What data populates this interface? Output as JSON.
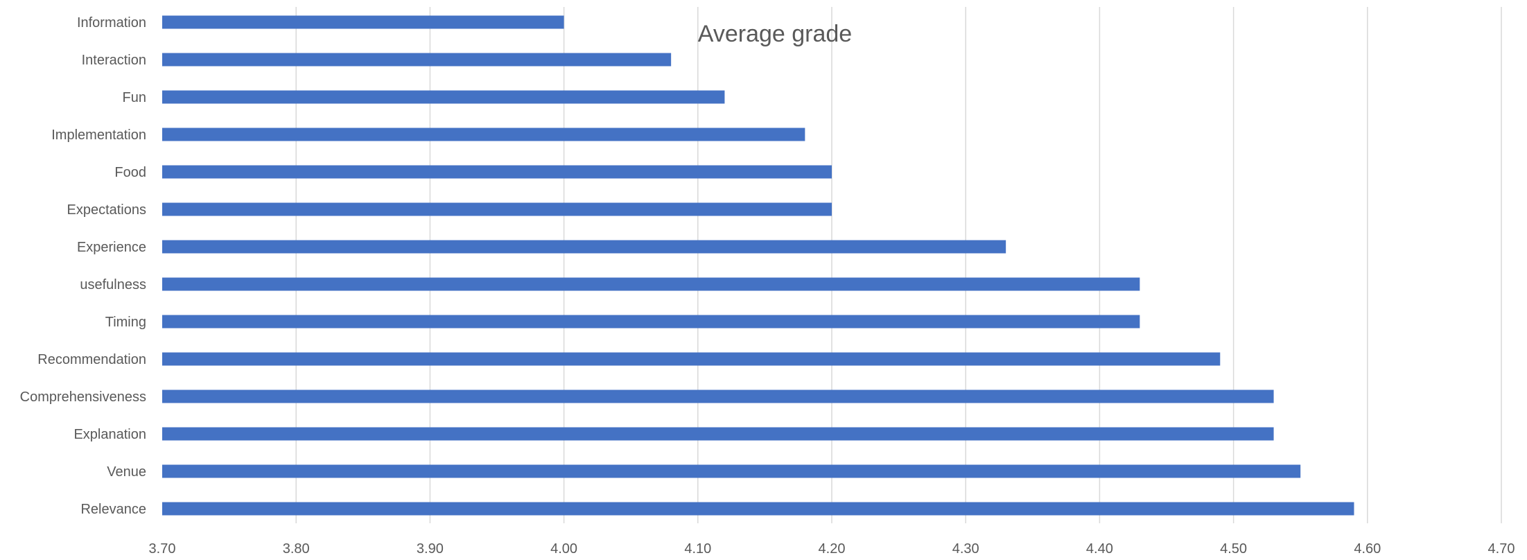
{
  "chart_data": {
    "type": "bar",
    "orientation": "horizontal",
    "title": "Average grade",
    "xlabel": "",
    "ylabel": "",
    "categories": [
      "Information",
      "Interaction",
      "Fun",
      "Implementation",
      "Food",
      "Expectations",
      "Experience",
      "usefulness",
      "Timing",
      "Recommendation",
      "Comprehensiveness",
      "Explanation",
      "Venue",
      "Relevance"
    ],
    "values": [
      4.0,
      4.08,
      4.12,
      4.18,
      4.2,
      4.2,
      4.33,
      4.43,
      4.43,
      4.49,
      4.53,
      4.53,
      4.55,
      4.59
    ],
    "xlim": [
      3.7,
      4.7
    ],
    "xticks": [
      "3.70",
      "3.80",
      "3.90",
      "4.00",
      "4.10",
      "4.20",
      "4.30",
      "4.40",
      "4.50",
      "4.60",
      "4.70"
    ],
    "grid": "vertical",
    "legend": "none",
    "colors": {
      "bar": "#4472C4",
      "grid": "#D9D9D9",
      "text": "#595959",
      "title": "#595959"
    }
  }
}
